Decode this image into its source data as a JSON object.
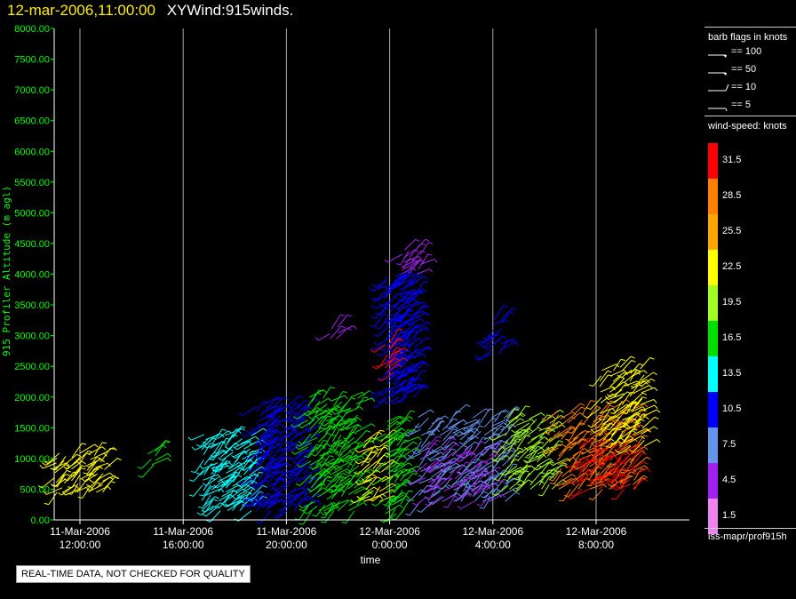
{
  "title": {
    "date": "12-mar-2006,11:00:00",
    "name": "XYWind:915winds."
  },
  "legend": {
    "barb_header": "barb flags in knots",
    "barbs": [
      {
        "label": "== 100",
        "flag": "pennant"
      },
      {
        "label": "== 50",
        "flag": "pennant"
      },
      {
        "label": "== 10",
        "flag": "full"
      },
      {
        "label": "== 5",
        "flag": "half"
      }
    ],
    "speed_header": "wind-speed: knots",
    "colorbar": [
      {
        "label": "31.5",
        "color": "#ff0000"
      },
      {
        "label": "28.5",
        "color": "#ff7f00"
      },
      {
        "label": "25.5",
        "color": "#ffa500"
      },
      {
        "label": "22.5",
        "color": "#ffff00"
      },
      {
        "label": "19.5",
        "color": "#a0ff20"
      },
      {
        "label": "16.5",
        "color": "#00e000"
      },
      {
        "label": "13.5",
        "color": "#00ffff"
      },
      {
        "label": "10.5",
        "color": "#0000ff"
      },
      {
        "label": "7.5",
        "color": "#6495ed"
      },
      {
        "label": "4.5",
        "color": "#a020f0"
      },
      {
        "label": "1.5",
        "color": "#ee82ee"
      }
    ]
  },
  "footer": {
    "dataset": "iss-mapr/prof915h",
    "qc_note": "REAL-TIME DATA, NOT CHECKED FOR QUALITY"
  },
  "colors": {
    "axis": "#00ff00",
    "grid": "#aaaaaa",
    "title_date": "#ffee00"
  },
  "chart_data": {
    "type": "scatter",
    "title": "XYWind:915winds.",
    "xlabel": "time",
    "ylabel": "915 Profiler Altitude (m agl)",
    "ylim": [
      0,
      8000
    ],
    "xlim": [
      "11-Mar-2006 9:00",
      "12-Mar-2006 12:00"
    ],
    "yticks": [
      "0.00",
      "500.00",
      "1000.00",
      "1500.00",
      "2000.00",
      "2500.00",
      "3000.00",
      "3500.00",
      "4000.00",
      "4500.00",
      "5000.00",
      "5500.00",
      "6000.00",
      "6500.00",
      "7000.00",
      "7500.00",
      "8000.00"
    ],
    "xticks": [
      {
        "t": "11-Mar-2006 12:00",
        "line1": "11-Mar-2006",
        "line2": "12:00:00"
      },
      {
        "t": "11-Mar-2006 16:00",
        "line1": "11-Mar-2006",
        "line2": "16:00:00"
      },
      {
        "t": "11-Mar-2006 20:00",
        "line1": "11-Mar-2006",
        "line2": "20:00:00"
      },
      {
        "t": "12-Mar-2006 0:00",
        "line1": "12-Mar-2006",
        "line2": "0:00:00"
      },
      {
        "t": "12-Mar-2006 4:00",
        "line1": "12-Mar-2006",
        "line2": "4:00:00"
      },
      {
        "t": "12-Mar-2006 8:00",
        "line1": "12-Mar-2006",
        "line2": "8:00:00"
      }
    ],
    "grid": "vertical",
    "series": [
      {
        "time_h": [
          -0.9,
          -0.6,
          -0.3,
          0.0,
          0.3,
          0.6,
          0.9
        ],
        "alt_min": 450,
        "alt_max": 1100,
        "speed": 22.5
      },
      {
        "time_h": [
          2.7,
          2.9
        ],
        "alt_min": 900,
        "alt_max": 1150,
        "speed": 16.5
      },
      {
        "time_h": [
          4.8,
          5.1,
          5.4,
          5.7,
          6.0,
          6.3,
          6.6
        ],
        "alt_min": 150,
        "alt_max": 1400,
        "speed": 13.5
      },
      {
        "time_h": [
          6.9,
          7.2,
          7.5,
          7.8,
          8.1,
          8.4,
          8.7
        ],
        "alt_min": 150,
        "alt_max": 1900,
        "speed": 10.5
      },
      {
        "time_h": [
          8.9,
          9.2,
          9.5,
          9.8,
          10.1,
          10.4,
          10.7
        ],
        "alt_min": 150,
        "alt_max": 2000,
        "speed": 16.5
      },
      {
        "time_h": [
          11.0,
          11.3,
          11.6
        ],
        "alt_min": 300,
        "alt_max": 1300,
        "speed": 22.5
      },
      {
        "time_h": [
          11.9,
          12.2,
          12.5
        ],
        "alt_min": 100,
        "alt_max": 1600,
        "speed": 16.5
      },
      {
        "time_h": [
          11.9,
          12.1,
          12.3,
          12.5,
          12.7,
          12.9
        ],
        "alt_min": 2000,
        "alt_max": 4000,
        "speed": 10.5
      },
      {
        "time_h": [
          11.9,
          12.1
        ],
        "alt_min": 2400,
        "alt_max": 2900,
        "speed": 31.5
      },
      {
        "time_h": [
          12.5,
          12.8,
          13.1
        ],
        "alt_min": 4000,
        "alt_max": 4450,
        "speed": 4.5
      },
      {
        "time_h": [
          9.7,
          9.9
        ],
        "alt_min": 2950,
        "alt_max": 3150,
        "speed": 4.5
      },
      {
        "time_h": [
          13.2,
          13.6,
          14.0,
          14.4,
          14.8,
          15.2,
          15.6,
          16.0,
          16.4
        ],
        "alt_min": 300,
        "alt_max": 1700,
        "speed": 7.5
      },
      {
        "time_h": [
          13.4,
          14.0,
          14.6,
          15.2,
          15.8
        ],
        "alt_min": 300,
        "alt_max": 1200,
        "speed": 4.5
      },
      {
        "time_h": [
          16.0,
          16.3
        ],
        "alt_min": 2700,
        "alt_max": 3300,
        "speed": 10.5
      },
      {
        "time_h": [
          16.6,
          17.0,
          17.4,
          17.8,
          18.2
        ],
        "alt_min": 500,
        "alt_max": 1700,
        "speed": 19.5
      },
      {
        "time_h": [
          18.6,
          19.0,
          19.4,
          19.8,
          20.2,
          20.6,
          21.0,
          21.4
        ],
        "alt_min": 500,
        "alt_max": 1800,
        "speed": 28.5
      },
      {
        "time_h": [
          19.4,
          19.8,
          20.2,
          20.6,
          21.0,
          21.4
        ],
        "alt_min": 500,
        "alt_max": 1200,
        "speed": 31.5
      },
      {
        "time_h": [
          20.2,
          20.6,
          21.0,
          21.4,
          21.8
        ],
        "alt_min": 1200,
        "alt_max": 2500,
        "speed": 22.5
      }
    ]
  }
}
